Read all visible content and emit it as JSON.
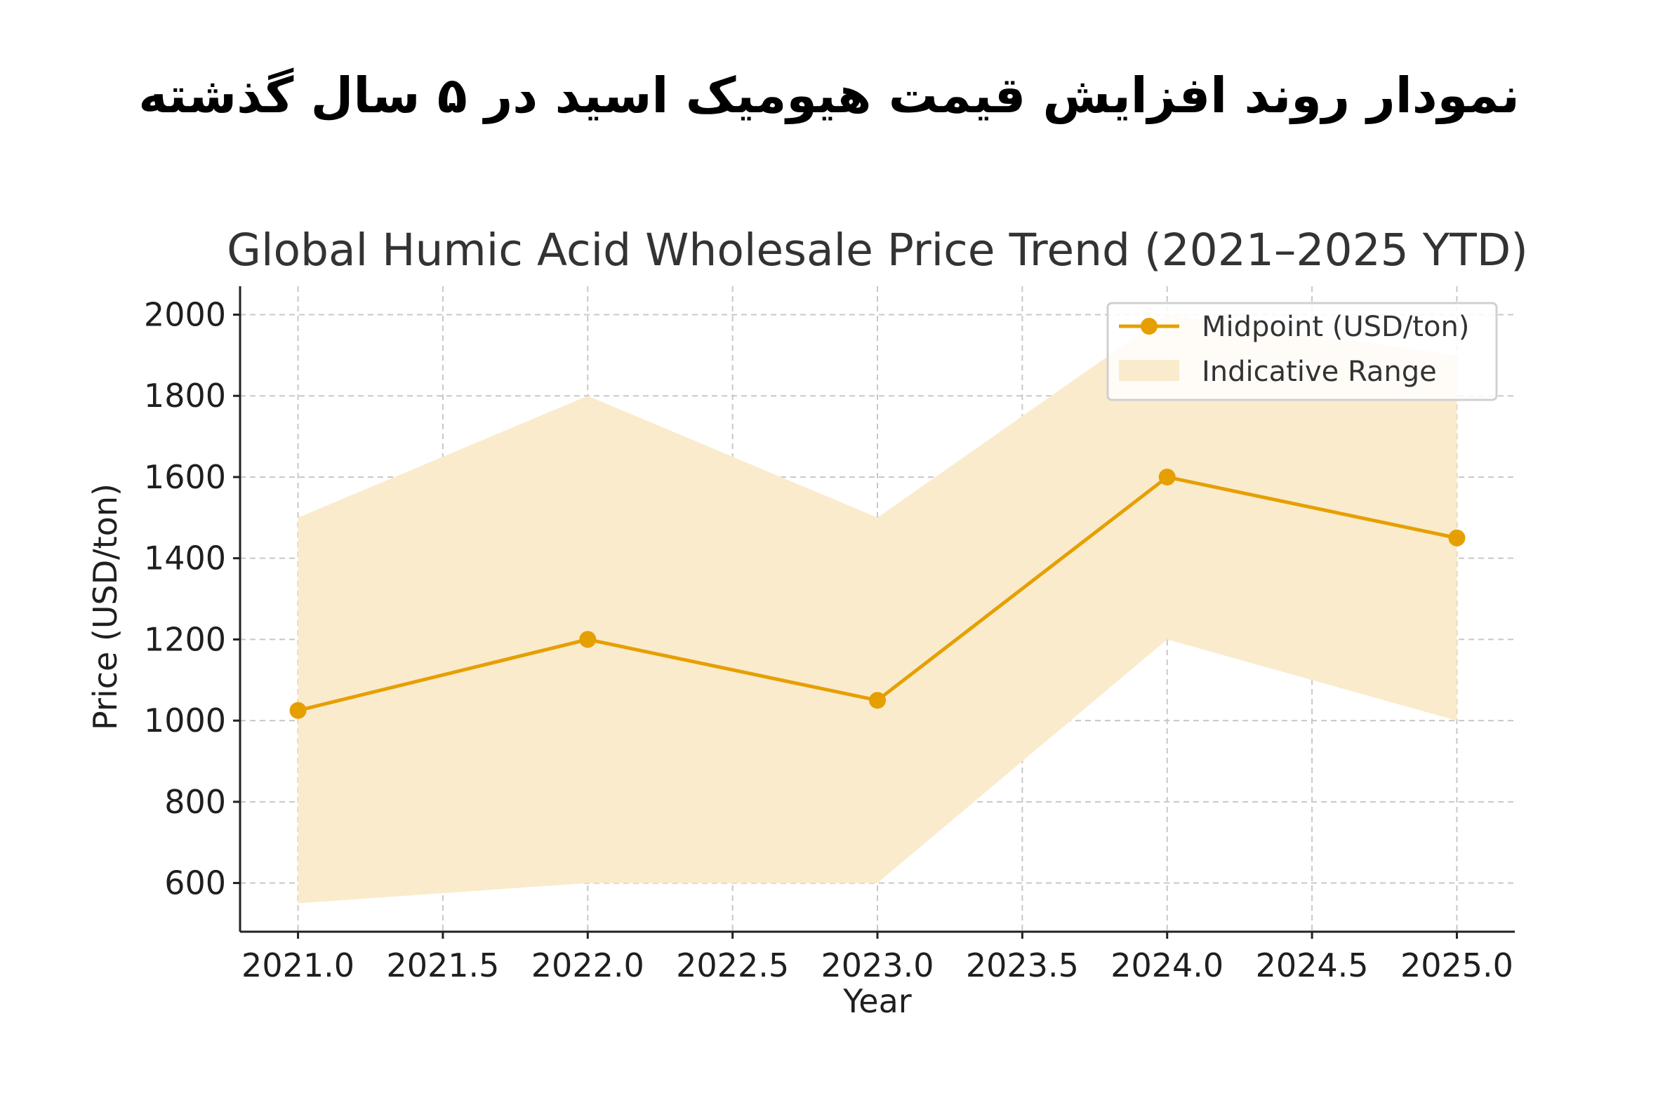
{
  "banner": {
    "title": "نمودار روند افزایش قیمت هیومیک اسید در ۵ سال گذشته"
  },
  "colors": {
    "line": "#E69F00",
    "band": "#FAEBCC",
    "grid": "#c8c8c8",
    "axis": "#222222"
  },
  "chart_data": {
    "type": "line",
    "title": "Global Humic Acid Wholesale Price Trend (2021–2025 YTD)",
    "xlabel": "Year",
    "ylabel": "Price (USD/ton)",
    "x": [
      2021,
      2022,
      2023,
      2024,
      2025
    ],
    "xlim": [
      2020.8,
      2025.2
    ],
    "ylim": [
      480,
      2070
    ],
    "xticks": [
      2021.0,
      2021.5,
      2022.0,
      2022.5,
      2023.0,
      2023.5,
      2024.0,
      2024.5,
      2025.0
    ],
    "xtick_labels": [
      "2021.0",
      "2021.5",
      "2022.0",
      "2022.5",
      "2023.0",
      "2023.5",
      "2024.0",
      "2024.5",
      "2025.0"
    ],
    "yticks": [
      600,
      800,
      1000,
      1200,
      1400,
      1600,
      1800,
      2000
    ],
    "ytick_labels": [
      "600",
      "800",
      "1000",
      "1200",
      "1400",
      "1600",
      "1800",
      "2000"
    ],
    "grid": true,
    "legend_position": "top-right",
    "series": [
      {
        "name": "Midpoint (USD/ton)",
        "kind": "line",
        "values": [
          1025,
          1200,
          1050,
          1600,
          1450
        ]
      },
      {
        "name": "Indicative Range",
        "kind": "band",
        "lower": [
          550,
          600,
          600,
          1200,
          1000
        ],
        "upper": [
          1500,
          1800,
          1500,
          2000,
          1900
        ]
      }
    ]
  }
}
